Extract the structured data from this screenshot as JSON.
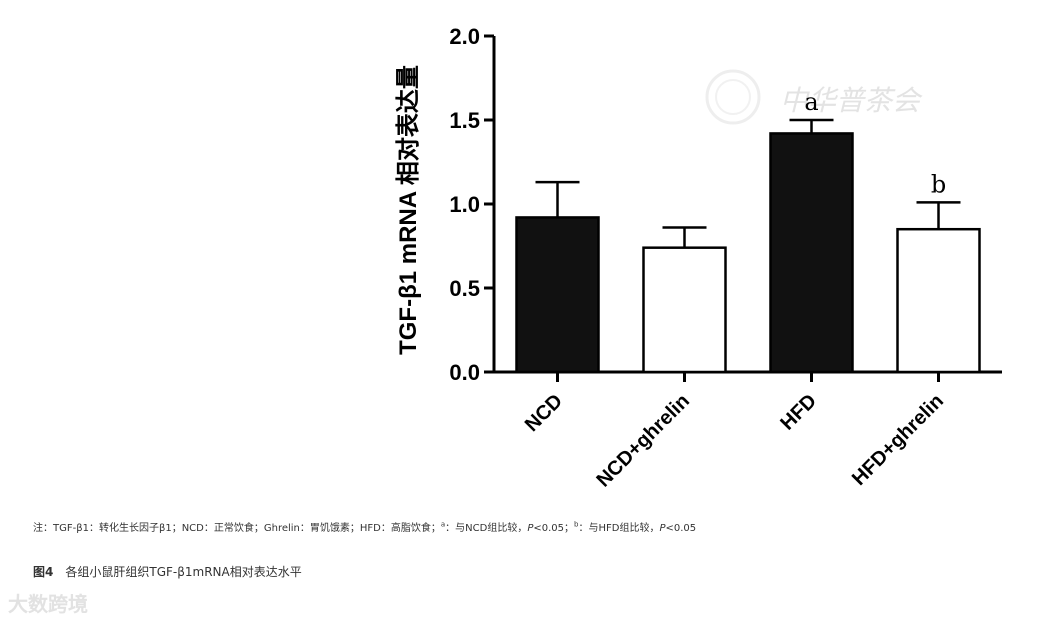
{
  "chart_data": {
    "type": "bar",
    "categories": [
      "NCD",
      "NCD+ghrelin",
      "HFD",
      "HFD+ghrelin"
    ],
    "values": [
      0.92,
      0.74,
      1.42,
      0.85
    ],
    "errors": [
      0.21,
      0.12,
      0.08,
      0.16
    ],
    "bar_fills": [
      "#111111",
      "#ffffff",
      "#111111",
      "#ffffff"
    ],
    "significance": [
      "",
      "",
      "a",
      "b"
    ],
    "ylabel": "TGF-β1 mRNA 相对表达量",
    "ylim": [
      0,
      2.0
    ],
    "yticks": [
      "0.0",
      "0.5",
      "1.0",
      "1.5",
      "2.0"
    ],
    "grid": false
  },
  "note": {
    "prefix": "注：TGF-β1：转化生长因子β1；NCD：正常饮食；Ghrelin：胃饥饿素；HFD：高脂饮食；",
    "a_sup": "a",
    "a_text": "：与NCD组比较，",
    "p1": "P",
    "p1_val": "<0.05；",
    "b_sup": "b",
    "b_text": "：与HFD组比较，",
    "p2": "P",
    "p2_val": "<0.05"
  },
  "caption": {
    "fig_label": "图4",
    "text": "各组小鼠肝组织TGF-β1mRNA相对表达水平"
  },
  "watermarks": {
    "top_right": "中华普茶会",
    "bottom_left": "大数跨境"
  }
}
